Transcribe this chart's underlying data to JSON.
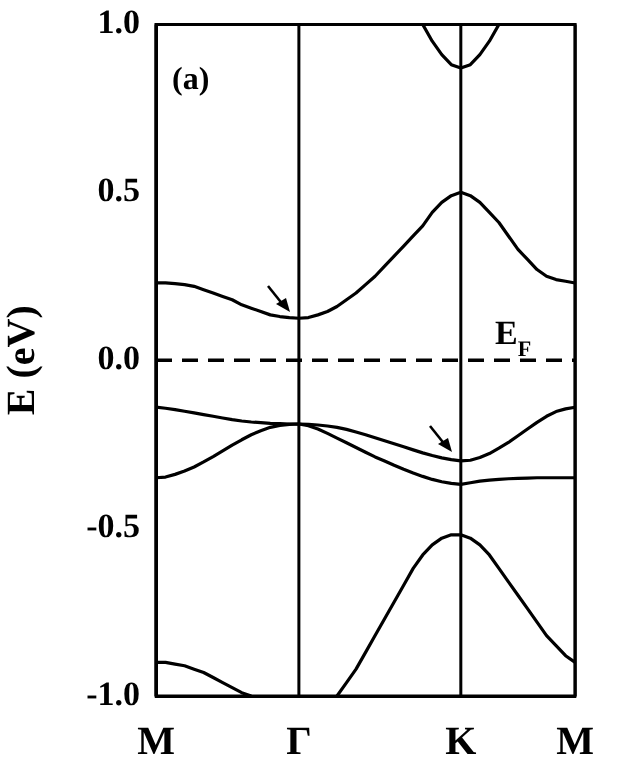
{
  "chart_data": {
    "type": "line",
    "ylabel": "E (eV)",
    "categories": [
      "M",
      null,
      null,
      null,
      null,
      null,
      null,
      null,
      null,
      null,
      null,
      null,
      null,
      null,
      null,
      "Γ",
      null,
      null,
      null,
      null,
      null,
      null,
      null,
      null,
      null,
      null,
      null,
      null,
      null,
      null,
      null,
      null,
      "K",
      null,
      null,
      null,
      null,
      null,
      null,
      null,
      null,
      null,
      null,
      null,
      "M"
    ],
    "ylim": [
      -1,
      1
    ],
    "yticks": [
      {
        "value": -1,
        "label": "-1.0"
      },
      {
        "value": -0.5,
        "label": "-0.5"
      },
      {
        "value": 0,
        "label": "0.0"
      },
      {
        "value": 0.5,
        "label": "0.5"
      },
      {
        "value": 1,
        "label": "1.0"
      }
    ],
    "grid": "x",
    "marker": "none",
    "line_style": "solid",
    "ref_lines": [
      {
        "axis": "y",
        "value": 0,
        "label": "E$_{F}$",
        "line_style": "dashed",
        "color": "#000000"
      }
    ],
    "annotations": [
      "(a)"
    ],
    "series": [
      {
        "color": "#000000",
        "values": [
          null,
          null,
          null,
          null,
          null,
          null,
          null,
          null,
          null,
          null,
          null,
          null,
          null,
          null,
          null,
          null,
          null,
          null,
          null,
          null,
          null,
          null,
          null,
          null,
          null,
          null,
          null,
          null,
          1.0,
          0.95,
          0.91,
          0.88,
          0.87,
          0.88,
          0.91,
          0.95,
          1.0,
          null,
          null,
          null,
          null,
          null,
          null,
          null,
          null
        ]
      },
      {
        "color": "#000000",
        "values": [
          0.23,
          0.23,
          0.228,
          0.225,
          0.22,
          0.21,
          0.2,
          0.19,
          0.18,
          0.165,
          0.155,
          0.145,
          0.135,
          0.13,
          0.127,
          0.125,
          0.127,
          0.135,
          0.145,
          0.16,
          0.18,
          0.2,
          0.225,
          0.25,
          0.28,
          0.31,
          0.34,
          0.37,
          0.4,
          0.44,
          0.47,
          0.49,
          0.5,
          0.49,
          0.47,
          0.44,
          0.41,
          0.37,
          0.33,
          0.3,
          0.27,
          0.25,
          0.24,
          0.235,
          0.23
        ]
      },
      {
        "color": "#000000",
        "values": [
          -0.14,
          -0.143,
          -0.147,
          -0.152,
          -0.157,
          -0.162,
          -0.167,
          -0.172,
          -0.177,
          -0.181,
          -0.184,
          -0.186,
          -0.188,
          -0.189,
          -0.19,
          -0.19,
          -0.191,
          -0.193,
          -0.196,
          -0.2,
          -0.206,
          -0.214,
          -0.222,
          -0.231,
          -0.24,
          -0.249,
          -0.258,
          -0.267,
          -0.276,
          -0.284,
          -0.291,
          -0.296,
          -0.3,
          -0.298,
          -0.29,
          -0.278,
          -0.262,
          -0.245,
          -0.225,
          -0.205,
          -0.185,
          -0.167,
          -0.153,
          -0.145,
          -0.14
        ]
      },
      {
        "color": "#000000",
        "values": [
          -0.35,
          -0.348,
          -0.34,
          -0.33,
          -0.318,
          -0.303,
          -0.287,
          -0.27,
          -0.253,
          -0.237,
          -0.222,
          -0.21,
          -0.2,
          -0.194,
          -0.191,
          -0.19,
          -0.195,
          -0.205,
          -0.218,
          -0.232,
          -0.246,
          -0.26,
          -0.274,
          -0.288,
          -0.3,
          -0.313,
          -0.325,
          -0.336,
          -0.346,
          -0.355,
          -0.362,
          -0.367,
          -0.37,
          -0.365,
          -0.36,
          -0.357,
          -0.355,
          -0.353,
          -0.352,
          -0.351,
          -0.35,
          -0.35,
          -0.35,
          -0.35,
          -0.35
        ]
      },
      {
        "color": "#000000",
        "values": [
          null,
          null,
          null,
          null,
          null,
          null,
          null,
          null,
          null,
          null,
          null,
          null,
          null,
          null,
          null,
          null,
          null,
          null,
          null,
          -1.0,
          -0.96,
          -0.92,
          -0.87,
          -0.82,
          -0.77,
          -0.72,
          -0.67,
          -0.62,
          -0.58,
          -0.55,
          -0.53,
          -0.52,
          -0.52,
          -0.53,
          -0.55,
          -0.58,
          -0.62,
          -0.66,
          -0.7,
          -0.74,
          -0.78,
          -0.82,
          -0.85,
          -0.88,
          -0.9
        ]
      },
      {
        "color": "#000000",
        "values": [
          -0.9,
          -0.9,
          -0.905,
          -0.91,
          -0.92,
          -0.93,
          -0.945,
          -0.96,
          -0.975,
          -0.99,
          -1.0,
          null,
          null,
          null,
          null,
          null,
          null,
          null,
          null,
          null,
          null,
          null,
          null,
          null,
          null,
          null,
          null,
          null,
          null,
          null,
          null,
          null,
          null,
          null,
          null,
          null,
          null,
          null,
          null,
          null,
          null,
          null,
          null,
          null,
          null
        ]
      }
    ]
  }
}
